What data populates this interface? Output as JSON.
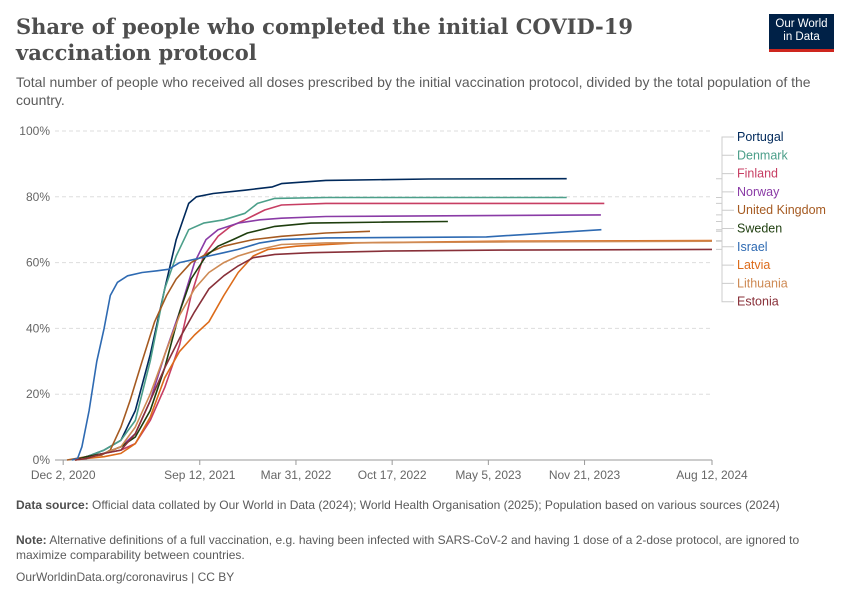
{
  "header": {
    "title": "Share of people who completed the initial COVID-19 vaccination protocol",
    "subtitle": "Total number of people who received all doses prescribed by the initial vaccination protocol, divided by the total population of the country.",
    "logo_line1": "Our World",
    "logo_line2": "in Data"
  },
  "footer": {
    "source_label": "Data source:",
    "source_text": "Official data collated by Our World in Data (2024); World Health Organisation (2025); Population based on various sources (2024)",
    "note_label": "Note:",
    "note_text": "Alternative definitions of a full vaccination, e.g. having been infected with SARS-CoV-2 and having 1 dose of a 2-dose protocol, are ignored to maximize comparability between countries.",
    "credit": "OurWorldinData.org/coronavirus | CC BY"
  },
  "chart_data": {
    "type": "line",
    "title": "Share of people who completed the initial COVID-19 vaccination protocol",
    "x_start": "2020-11-15",
    "x_end": "2024-08-12",
    "y_range": [
      0,
      100
    ],
    "y_ticks": [
      0,
      20,
      40,
      60,
      80,
      100
    ],
    "y_tick_labels": [
      "0%",
      "20%",
      "40%",
      "60%",
      "80%",
      "100%"
    ],
    "x_ticks": [
      "2020-12-02",
      "2021-09-12",
      "2022-03-31",
      "2022-10-17",
      "2023-05-05",
      "2023-11-21",
      "2024-08-12"
    ],
    "x_tick_labels": [
      "Dec 2, 2020",
      "Sep 12, 2021",
      "Mar 31, 2022",
      "Oct 17, 2022",
      "May 5, 2023",
      "Nov 21, 2023",
      "Aug 12, 2024"
    ],
    "grid": true,
    "legend_position": "right",
    "series": [
      {
        "name": "Portugal",
        "color": "#00295b",
        "points": [
          [
            "2020-12-27",
            0
          ],
          [
            "2021-01-20",
            1
          ],
          [
            "2021-02-25",
            3
          ],
          [
            "2021-04-01",
            6
          ],
          [
            "2021-05-01",
            15
          ],
          [
            "2021-06-01",
            32
          ],
          [
            "2021-07-01",
            52
          ],
          [
            "2021-07-25",
            67
          ],
          [
            "2021-08-20",
            78
          ],
          [
            "2021-09-05",
            80
          ],
          [
            "2021-10-10",
            81
          ],
          [
            "2021-12-15",
            82
          ],
          [
            "2022-02-10",
            83
          ],
          [
            "2022-03-01",
            84
          ],
          [
            "2022-06-01",
            85
          ],
          [
            "2023-01-01",
            85.4
          ],
          [
            "2023-10-15",
            85.5
          ]
        ]
      },
      {
        "name": "Denmark",
        "color": "#4c9f8a",
        "points": [
          [
            "2020-12-27",
            0
          ],
          [
            "2021-01-20",
            1
          ],
          [
            "2021-02-25",
            3
          ],
          [
            "2021-04-01",
            6
          ],
          [
            "2021-05-01",
            12
          ],
          [
            "2021-06-01",
            30
          ],
          [
            "2021-07-01",
            52
          ],
          [
            "2021-07-25",
            62
          ],
          [
            "2021-08-20",
            70
          ],
          [
            "2021-09-20",
            72
          ],
          [
            "2021-11-01",
            73
          ],
          [
            "2021-12-15",
            75
          ],
          [
            "2022-01-10",
            78
          ],
          [
            "2022-02-15",
            79.5
          ],
          [
            "2022-06-01",
            79.8
          ],
          [
            "2023-10-15",
            79.8
          ]
        ]
      },
      {
        "name": "Finland",
        "color": "#c73e63",
        "points": [
          [
            "2020-12-27",
            0
          ],
          [
            "2021-01-20",
            1
          ],
          [
            "2021-02-25",
            2
          ],
          [
            "2021-04-01",
            3
          ],
          [
            "2021-05-01",
            5
          ],
          [
            "2021-06-01",
            12
          ],
          [
            "2021-07-01",
            22
          ],
          [
            "2021-08-01",
            35
          ],
          [
            "2021-08-25",
            50
          ],
          [
            "2021-09-20",
            62
          ],
          [
            "2021-10-20",
            68
          ],
          [
            "2021-11-15",
            71
          ],
          [
            "2021-12-15",
            73
          ],
          [
            "2022-01-25",
            76
          ],
          [
            "2022-03-01",
            77.5
          ],
          [
            "2022-06-01",
            78
          ],
          [
            "2024-01-01",
            78
          ]
        ]
      },
      {
        "name": "Norway",
        "color": "#8a3ba6",
        "points": [
          [
            "2020-12-27",
            0
          ],
          [
            "2021-01-20",
            1
          ],
          [
            "2021-02-25",
            2
          ],
          [
            "2021-04-01",
            4
          ],
          [
            "2021-05-01",
            8
          ],
          [
            "2021-06-01",
            18
          ],
          [
            "2021-07-01",
            32
          ],
          [
            "2021-08-01",
            45
          ],
          [
            "2021-09-01",
            60
          ],
          [
            "2021-09-25",
            67
          ],
          [
            "2021-10-20",
            70
          ],
          [
            "2021-12-01",
            72
          ],
          [
            "2022-01-15",
            73
          ],
          [
            "2022-03-01",
            73.5
          ],
          [
            "2022-06-01",
            74
          ],
          [
            "2023-12-25",
            74.5
          ]
        ]
      },
      {
        "name": "United Kingdom",
        "color": "#a55a21",
        "points": [
          [
            "2020-12-10",
            0
          ],
          [
            "2020-12-30",
            0.5
          ],
          [
            "2021-01-20",
            1
          ],
          [
            "2021-02-20",
            1.5
          ],
          [
            "2021-03-10",
            3
          ],
          [
            "2021-04-01",
            10
          ],
          [
            "2021-04-20",
            18
          ],
          [
            "2021-05-15",
            30
          ],
          [
            "2021-06-10",
            42
          ],
          [
            "2021-07-05",
            50
          ],
          [
            "2021-07-25",
            55
          ],
          [
            "2021-08-25",
            60
          ],
          [
            "2021-10-01",
            63
          ],
          [
            "2021-11-01",
            65
          ],
          [
            "2021-12-01",
            66
          ],
          [
            "2022-01-01",
            67
          ],
          [
            "2022-03-01",
            68
          ],
          [
            "2022-06-01",
            69
          ],
          [
            "2022-09-01",
            69.5
          ]
        ]
      },
      {
        "name": "Sweden",
        "color": "#1e3e0e",
        "points": [
          [
            "2020-12-27",
            0
          ],
          [
            "2021-01-20",
            1
          ],
          [
            "2021-02-25",
            2
          ],
          [
            "2021-04-01",
            4
          ],
          [
            "2021-05-01",
            7
          ],
          [
            "2021-06-01",
            15
          ],
          [
            "2021-07-01",
            28
          ],
          [
            "2021-08-01",
            45
          ],
          [
            "2021-08-25",
            55
          ],
          [
            "2021-09-25",
            62
          ],
          [
            "2021-10-20",
            65
          ],
          [
            "2021-11-20",
            67
          ],
          [
            "2021-12-20",
            69
          ],
          [
            "2022-02-15",
            71
          ],
          [
            "2022-05-01",
            72
          ],
          [
            "2022-10-01",
            72.3
          ],
          [
            "2023-02-10",
            72.5
          ]
        ]
      },
      {
        "name": "Israel",
        "color": "#2e6ab2",
        "points": [
          [
            "2020-12-20",
            0
          ],
          [
            "2021-01-01",
            0.5
          ],
          [
            "2021-01-10",
            4
          ],
          [
            "2021-01-25",
            15
          ],
          [
            "2021-02-10",
            30
          ],
          [
            "2021-02-25",
            40
          ],
          [
            "2021-03-10",
            50
          ],
          [
            "2021-03-25",
            54
          ],
          [
            "2021-04-15",
            56
          ],
          [
            "2021-05-15",
            57
          ],
          [
            "2021-06-15",
            57.5
          ],
          [
            "2021-07-10",
            58
          ],
          [
            "2021-08-01",
            60
          ],
          [
            "2021-09-01",
            61
          ],
          [
            "2021-10-01",
            62
          ],
          [
            "2021-11-01",
            63
          ],
          [
            "2021-12-01",
            64
          ],
          [
            "2022-01-15",
            66
          ],
          [
            "2022-03-01",
            67
          ],
          [
            "2022-06-01",
            67.5
          ],
          [
            "2023-05-01",
            67.8
          ],
          [
            "2023-12-26",
            70
          ]
        ]
      },
      {
        "name": "Latvia",
        "color": "#dc6b1a",
        "points": [
          [
            "2020-12-27",
            0
          ],
          [
            "2021-01-20",
            0.5
          ],
          [
            "2021-02-25",
            1
          ],
          [
            "2021-04-01",
            2
          ],
          [
            "2021-05-01",
            5
          ],
          [
            "2021-06-01",
            13
          ],
          [
            "2021-07-01",
            25
          ],
          [
            "2021-08-01",
            33
          ],
          [
            "2021-09-01",
            38
          ],
          [
            "2021-10-01",
            42
          ],
          [
            "2021-11-01",
            50
          ],
          [
            "2021-12-01",
            57
          ],
          [
            "2022-01-01",
            62
          ],
          [
            "2022-02-01",
            64
          ],
          [
            "2022-04-01",
            65
          ],
          [
            "2022-08-01",
            66
          ],
          [
            "2023-06-01",
            66.5
          ],
          [
            "2024-08-12",
            66.7
          ]
        ]
      },
      {
        "name": "Lithuania",
        "color": "#ce8a54",
        "points": [
          [
            "2020-12-27",
            0
          ],
          [
            "2021-01-20",
            0.5
          ],
          [
            "2021-02-25",
            2
          ],
          [
            "2021-04-01",
            4
          ],
          [
            "2021-05-01",
            10
          ],
          [
            "2021-06-01",
            20
          ],
          [
            "2021-07-01",
            32
          ],
          [
            "2021-08-01",
            44
          ],
          [
            "2021-09-01",
            52
          ],
          [
            "2021-10-01",
            57
          ],
          [
            "2021-11-01",
            60
          ],
          [
            "2021-12-01",
            62
          ],
          [
            "2022-01-15",
            64
          ],
          [
            "2022-03-01",
            65.5
          ],
          [
            "2022-06-01",
            66
          ],
          [
            "2023-06-01",
            66.3
          ],
          [
            "2024-08-12",
            66.5
          ]
        ]
      },
      {
        "name": "Estonia",
        "color": "#883039",
        "points": [
          [
            "2020-12-27",
            0
          ],
          [
            "2021-01-20",
            0.5
          ],
          [
            "2021-02-25",
            2
          ],
          [
            "2021-04-01",
            3
          ],
          [
            "2021-05-01",
            8
          ],
          [
            "2021-06-01",
            18
          ],
          [
            "2021-07-01",
            28
          ],
          [
            "2021-08-01",
            37
          ],
          [
            "2021-09-01",
            45
          ],
          [
            "2021-10-01",
            52
          ],
          [
            "2021-11-01",
            56
          ],
          [
            "2021-12-01",
            59
          ],
          [
            "2022-01-01",
            61.5
          ],
          [
            "2022-02-15",
            62.5
          ],
          [
            "2022-05-01",
            63
          ],
          [
            "2022-10-01",
            63.5
          ],
          [
            "2023-06-01",
            63.8
          ],
          [
            "2024-08-12",
            64
          ]
        ]
      }
    ]
  }
}
